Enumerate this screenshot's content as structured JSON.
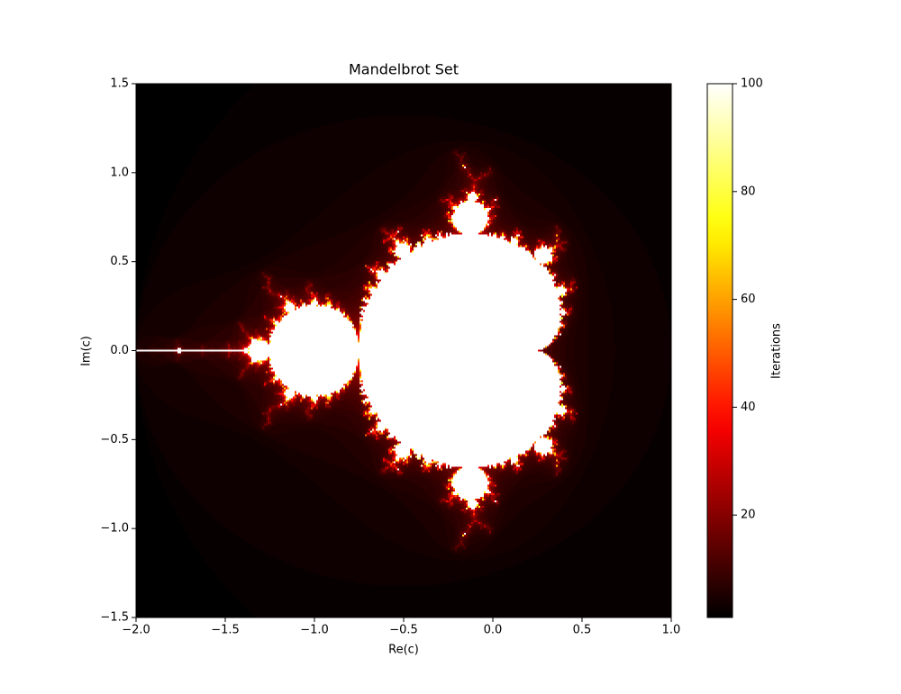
{
  "chart_data": {
    "type": "mandelbrot",
    "title": "Mandelbrot Set",
    "x_label": "Re(c)",
    "y_label": "Im(c)",
    "colorbar_label": "Iterations",
    "colormap": "hot",
    "max_iter": 100,
    "xlim": [
      -2.0,
      1.0
    ],
    "ylim": [
      -1.5,
      1.5
    ],
    "xticks": [
      {
        "value": -2.0,
        "label": "−2.0"
      },
      {
        "value": -1.5,
        "label": "−1.5"
      },
      {
        "value": -1.0,
        "label": "−1.0"
      },
      {
        "value": -0.5,
        "label": "−0.5"
      },
      {
        "value": 0.0,
        "label": "0.0"
      },
      {
        "value": 0.5,
        "label": "0.5"
      },
      {
        "value": 1.0,
        "label": "1.0"
      }
    ],
    "yticks": [
      {
        "value": -1.5,
        "label": "−1.5"
      },
      {
        "value": -1.0,
        "label": "−1.0"
      },
      {
        "value": -0.5,
        "label": "−0.5"
      },
      {
        "value": 0.0,
        "label": "0.0"
      },
      {
        "value": 0.5,
        "label": "0.5"
      },
      {
        "value": 1.0,
        "label": "1.0"
      },
      {
        "value": 1.5,
        "label": "1.5"
      }
    ],
    "clim": [
      1,
      100
    ],
    "cticks": [
      20,
      40,
      60,
      80,
      100
    ]
  }
}
